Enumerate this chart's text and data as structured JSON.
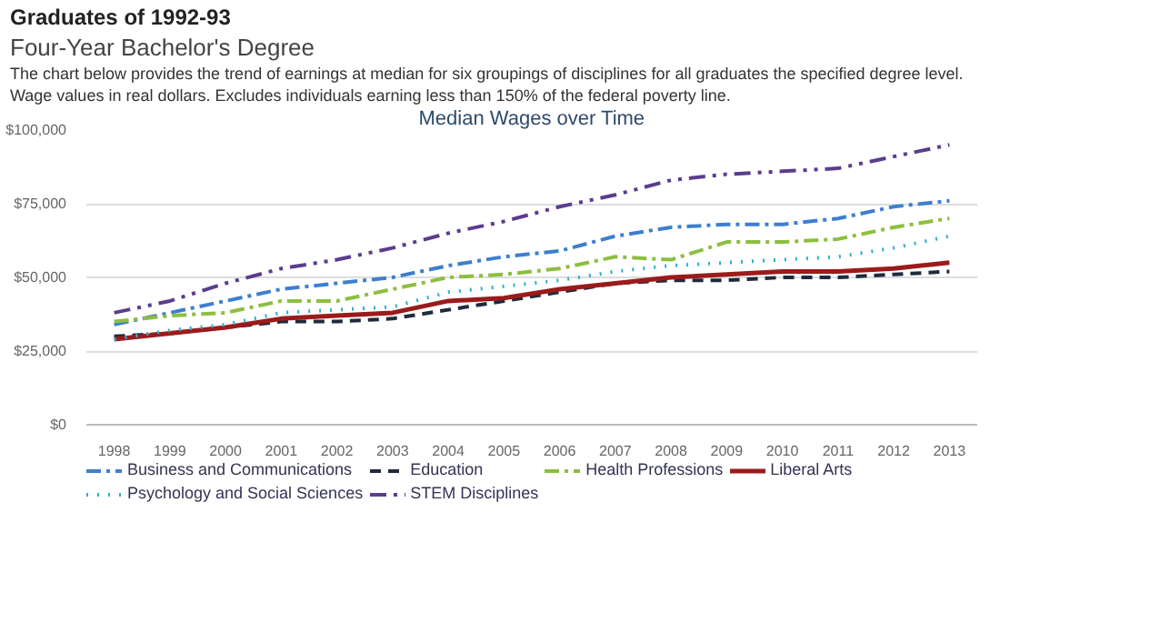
{
  "chart_data": {
    "type": "line",
    "title": "Graduates of 1992-93",
    "subtitle": "Four-Year Bachelor's Degree",
    "annotations": [
      "The chart below provides the trend of earnings at median for six groupings of disciplines for all graduates the specified degree level.",
      "Wage values in real dollars. Excludes individuals earning less than 150% of the federal poverty line.",
      "Median Wages over Time"
    ],
    "categories": [
      "1998",
      "1999",
      "2000",
      "2001",
      "2002",
      "2003",
      "2004",
      "2005",
      "2006",
      "2007",
      "2008",
      "2009",
      "2010",
      "2011",
      "2012",
      "2013"
    ],
    "ylim": [
      0,
      100000
    ],
    "yticks": [
      {
        "value": 0,
        "label": "$0"
      },
      {
        "value": 25000,
        "label": "$25,000"
      },
      {
        "value": 50000,
        "label": "$50,000"
      },
      {
        "value": 75000,
        "label": "$75,000"
      },
      {
        "value": 100000,
        "label": "$100,000"
      }
    ],
    "grid": "y",
    "legend": "bottom",
    "series": [
      {
        "name": "Business and Communications",
        "color": "#3d7fcf",
        "line_style": "dashdot",
        "values": [
          34000,
          38000,
          42000,
          46000,
          48000,
          50000,
          54000,
          57000,
          59000,
          64000,
          67000,
          68000,
          68000,
          70000,
          74000,
          76000
        ]
      },
      {
        "name": "Education",
        "color": "#1f2a3c",
        "line_style": "dashed",
        "values": [
          30000,
          31000,
          33000,
          35000,
          35000,
          36000,
          39000,
          42000,
          45000,
          48000,
          49000,
          49000,
          50000,
          50000,
          51000,
          52000
        ]
      },
      {
        "name": "Health Professions",
        "color": "#8cbf3f",
        "line_style": "dashdot",
        "values": [
          35000,
          37000,
          38000,
          42000,
          42000,
          46000,
          50000,
          51000,
          53000,
          57000,
          56000,
          62000,
          62000,
          63000,
          67000,
          70000
        ]
      },
      {
        "name": "Liberal Arts",
        "color": "#9b1b1b",
        "line_style": "solid",
        "values": [
          29000,
          31000,
          33000,
          36000,
          37000,
          38000,
          42000,
          43000,
          46000,
          48000,
          50000,
          51000,
          52000,
          52000,
          53000,
          55000
        ]
      },
      {
        "name": "Psychology and Social Sciences",
        "color": "#2bb0d0",
        "line_style": "dotted",
        "values": [
          29000,
          32000,
          34000,
          38000,
          39000,
          40000,
          45000,
          47000,
          49000,
          52000,
          54000,
          55000,
          56000,
          57000,
          60000,
          64000
        ]
      },
      {
        "name": "STEM Disciplines",
        "color": "#5b3d8c",
        "line_style": "dashdotdot",
        "values": [
          38000,
          42000,
          48000,
          53000,
          56000,
          60000,
          65000,
          69000,
          74000,
          78000,
          83000,
          85000,
          86000,
          87000,
          91000,
          95000
        ]
      }
    ]
  }
}
